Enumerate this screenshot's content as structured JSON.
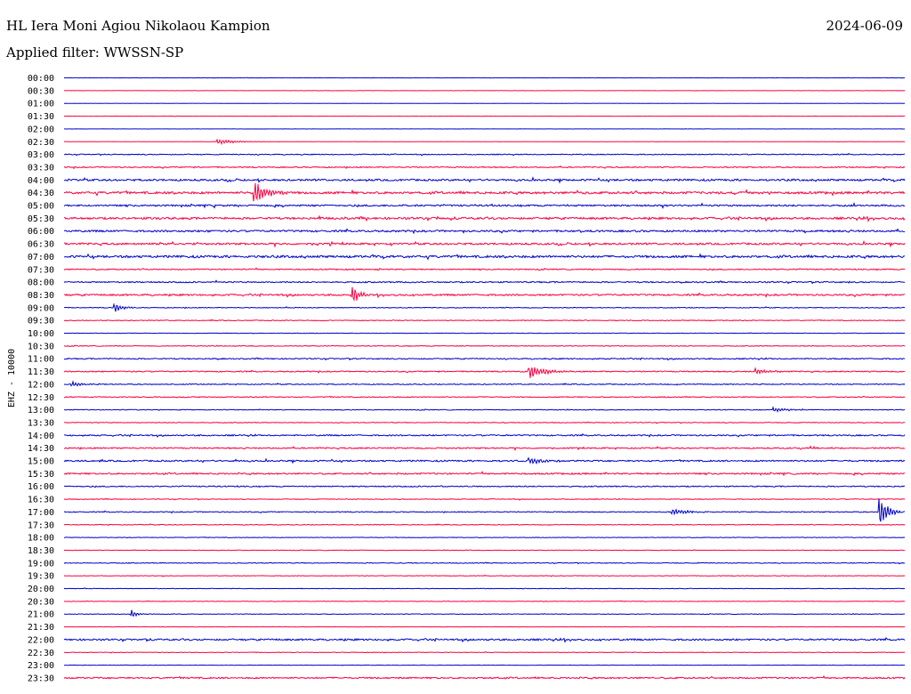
{
  "header": {
    "station": "HL Iera Moni Agiou Nikolaou Kampion",
    "filter": "Applied filter: WWSSN-SP",
    "date": "2024-06-09"
  },
  "chart_data": {
    "type": "line",
    "title": "HL Iera Moni Agiou Nikolaou Kampion",
    "subtitle": "Applied filter: WWSSN-SP",
    "ylabel": "EHZ - 10000",
    "xlabel": "",
    "rows": [
      "00:00",
      "00:30",
      "01:00",
      "01:30",
      "02:00",
      "02:30",
      "03:00",
      "03:30",
      "04:00",
      "04:30",
      "05:00",
      "05:30",
      "06:00",
      "06:30",
      "07:00",
      "07:30",
      "08:00",
      "08:30",
      "09:00",
      "09:30",
      "10:00",
      "10:30",
      "11:00",
      "11:30",
      "12:00",
      "12:30",
      "13:00",
      "13:30",
      "14:00",
      "14:30",
      "15:00",
      "15:30",
      "16:00",
      "16:30",
      "17:00",
      "17:30",
      "18:00",
      "18:30",
      "19:00",
      "19:30",
      "20:00",
      "20:30",
      "21:00",
      "21:30",
      "22:00",
      "22:30",
      "23:00",
      "23:30"
    ],
    "colors": [
      "#0000cc",
      "#ff0040"
    ],
    "grid": false,
    "row_noise": [
      0.15,
      0.15,
      0.1,
      0.15,
      0.1,
      0.1,
      0.5,
      0.6,
      1.0,
      1.2,
      0.9,
      1.1,
      1.0,
      1.0,
      1.2,
      0.6,
      0.7,
      0.9,
      0.4,
      0.4,
      0.3,
      0.4,
      0.6,
      0.6,
      0.5,
      0.5,
      0.4,
      0.4,
      0.7,
      0.7,
      0.8,
      0.8,
      0.6,
      0.4,
      0.5,
      0.4,
      0.3,
      0.3,
      0.4,
      0.3,
      0.3,
      0.3,
      0.3,
      0.2,
      0.9,
      0.3,
      0.2,
      0.8
    ],
    "events": [
      {
        "row": 9,
        "minute": 6.8,
        "amplitude": 14,
        "duration": 1.2
      },
      {
        "row": 17,
        "minute": 10.3,
        "amplitude": 11,
        "duration": 0.8
      },
      {
        "row": 18,
        "minute": 1.8,
        "amplitude": 6,
        "duration": 0.8
      },
      {
        "row": 23,
        "minute": 16.6,
        "amplitude": 10,
        "duration": 1.5
      },
      {
        "row": 23,
        "minute": 24.7,
        "amplitude": 4,
        "duration": 1.2
      },
      {
        "row": 24,
        "minute": 0.3,
        "amplitude": 3,
        "duration": 1.0
      },
      {
        "row": 26,
        "minute": 25.3,
        "amplitude": 3,
        "duration": 1.4
      },
      {
        "row": 30,
        "minute": 16.6,
        "amplitude": 4,
        "duration": 1.6
      },
      {
        "row": 34,
        "minute": 21.7,
        "amplitude": 4,
        "duration": 1.5
      },
      {
        "row": 34,
        "minute": 29.1,
        "amplitude": 20,
        "duration": 0.8
      },
      {
        "row": 42,
        "minute": 2.4,
        "amplitude": 6,
        "duration": 0.5
      },
      {
        "row": 5,
        "minute": 5.5,
        "amplitude": 3,
        "duration": 2.0
      }
    ]
  }
}
